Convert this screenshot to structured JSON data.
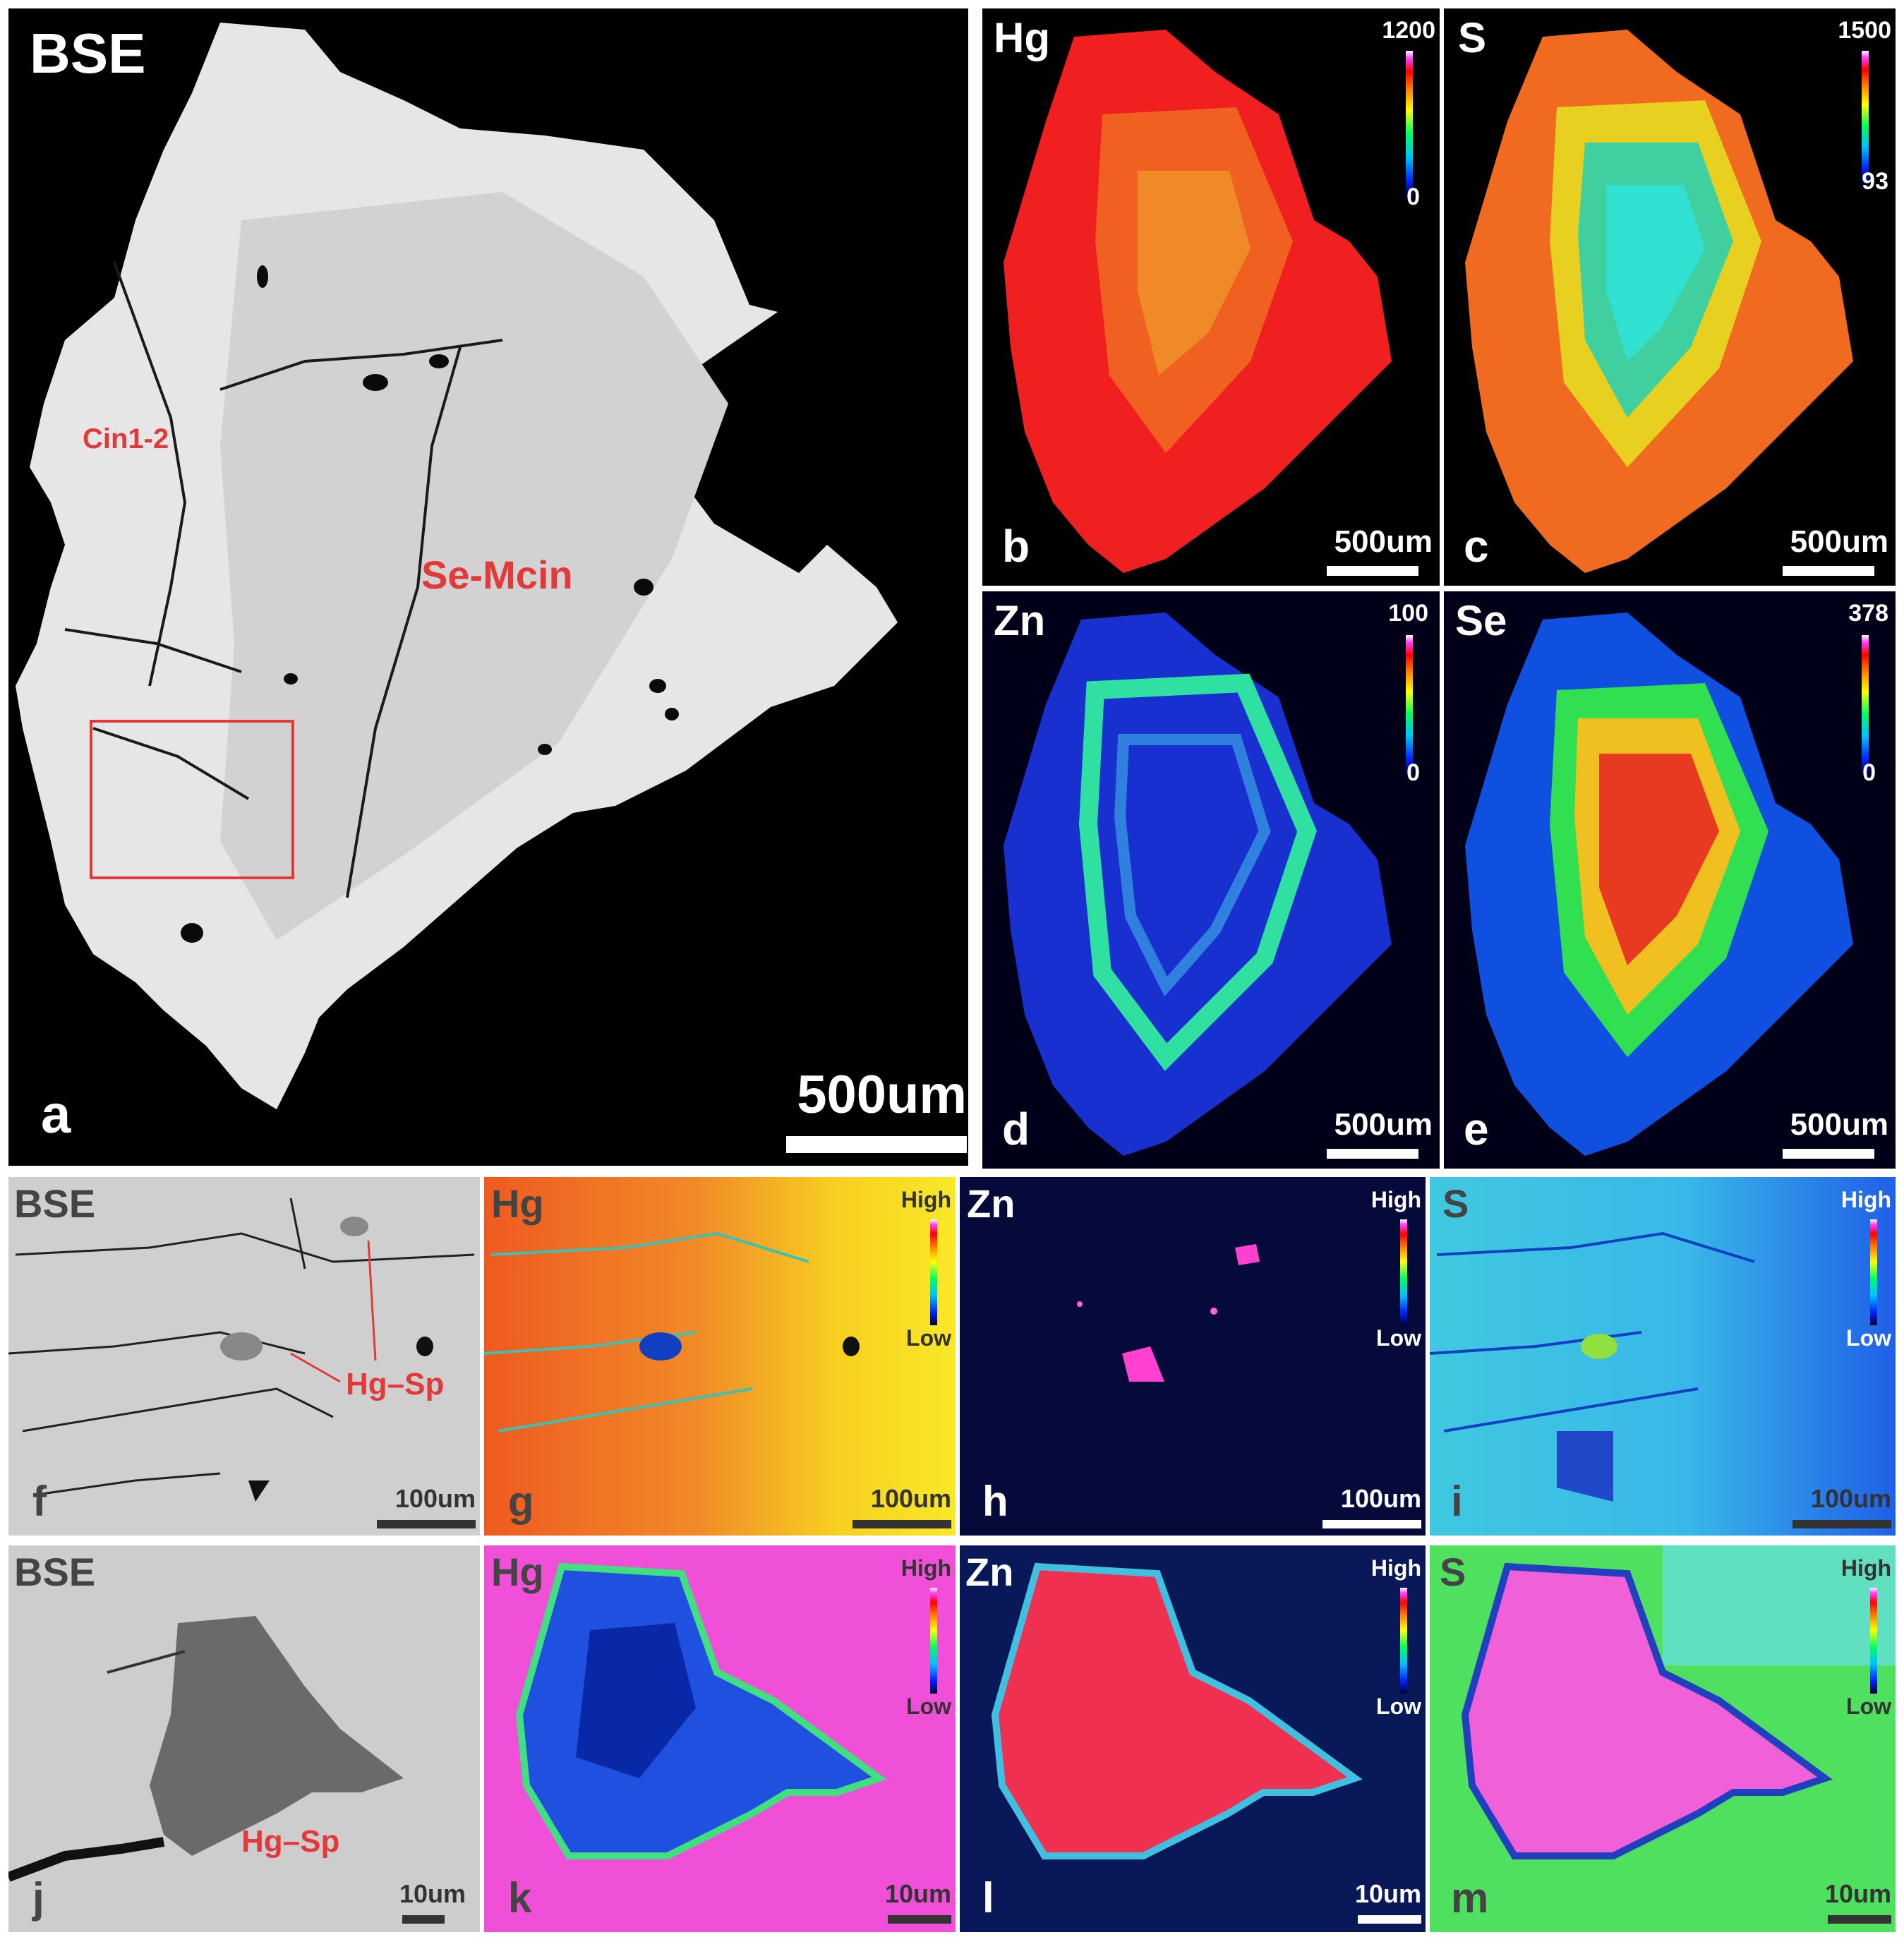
{
  "panel_a": {
    "title": "BSE",
    "letter": "a",
    "scale": "500um",
    "label_cin": "Cin1-2",
    "label_semcin": "Se-Mcin"
  },
  "panel_b": {
    "title": "Hg",
    "letter": "b",
    "scale": "500um",
    "cmax": "1200",
    "cmin": "0"
  },
  "panel_c": {
    "title": "S",
    "letter": "c",
    "scale": "500um",
    "cmax": "1500",
    "cmin": "93"
  },
  "panel_d": {
    "title": "Zn",
    "letter": "d",
    "scale": "500um",
    "cmax": "100",
    "cmin": "0"
  },
  "panel_e": {
    "title": "Se",
    "letter": "e",
    "scale": "500um",
    "cmax": "378",
    "cmin": "0"
  },
  "panel_f": {
    "title": "BSE",
    "letter": "f",
    "scale": "100um",
    "label": "Hg–Sp"
  },
  "panel_g": {
    "title": "Hg",
    "letter": "g",
    "scale": "100um",
    "high": "High",
    "low": "Low"
  },
  "panel_h": {
    "title": "Zn",
    "letter": "h",
    "scale": "100um",
    "high": "High",
    "low": "Low"
  },
  "panel_i": {
    "title": "S",
    "letter": "i",
    "scale": "100um",
    "high": "High",
    "low": "Low"
  },
  "panel_j": {
    "title": "BSE",
    "letter": "j",
    "scale": "10um",
    "label": "Hg–Sp"
  },
  "panel_k": {
    "title": "Hg",
    "letter": "k",
    "scale": "10um",
    "high": "High",
    "low": "Low"
  },
  "panel_l": {
    "title": "Zn",
    "letter": "l",
    "scale": "10um",
    "high": "High",
    "low": "Low"
  },
  "panel_m": {
    "title": "S",
    "letter": "m",
    "scale": "10um",
    "high": "High",
    "low": "Low"
  }
}
